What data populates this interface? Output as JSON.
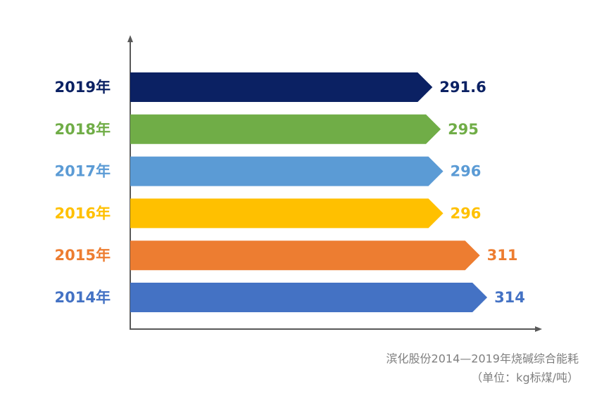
{
  "chart_data": {
    "type": "bar",
    "categories": [
      "2019年",
      "2018年",
      "2017年",
      "2016年",
      "2015年",
      "2014年"
    ],
    "values": [
      291.6,
      295,
      296,
      296,
      311,
      314
    ],
    "colors": [
      "#0b2163",
      "#70ad47",
      "#5b9bd5",
      "#ffc000",
      "#ed7d31",
      "#4472c4"
    ],
    "xlim": [
      168,
      335
    ],
    "caption": [
      "滨化股份2014—2019年烧碱综合能耗",
      "（单位：kg标煤/吨）"
    ]
  }
}
